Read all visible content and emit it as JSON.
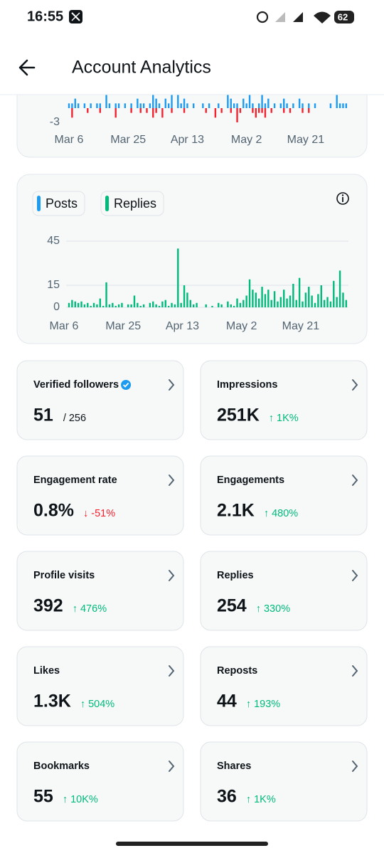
{
  "status_bar": {
    "time": "16:55",
    "battery": "62"
  },
  "header": {
    "title": "Account Analytics"
  },
  "chart_data": [
    {
      "type": "bar",
      "categories": [
        "Mar 6",
        null,
        null,
        null,
        null,
        null,
        null,
        null,
        null,
        null,
        null,
        null,
        null,
        null,
        null,
        null,
        null,
        null,
        null,
        "Mar 25",
        null,
        null,
        null,
        null,
        null,
        null,
        null,
        null,
        null,
        null,
        null,
        null,
        null,
        null,
        null,
        null,
        null,
        null,
        "Apr 13",
        null,
        null,
        null,
        null,
        null,
        null,
        null,
        null,
        null,
        null,
        null,
        null,
        null,
        null,
        null,
        null,
        null,
        null,
        "May 2",
        null,
        null,
        null,
        null,
        null,
        null,
        null,
        null,
        null,
        null,
        null,
        null,
        null,
        null,
        null,
        null,
        null,
        null,
        "May 21",
        null,
        null,
        null,
        null,
        null,
        null,
        null,
        null,
        null,
        null,
        null,
        null,
        null
      ],
      "series": [
        {
          "color": "#1d9bf0",
          "values": [
            1,
            1,
            2,
            1,
            0,
            1,
            0,
            1,
            0,
            1,
            1,
            0,
            3,
            1,
            0,
            1,
            1,
            0,
            1,
            0,
            1,
            0,
            2,
            1,
            1,
            0,
            1,
            3,
            2,
            1,
            0,
            2,
            1,
            3,
            0,
            3,
            1,
            2,
            1,
            0,
            1,
            0,
            0,
            1,
            0,
            1,
            0,
            0,
            1,
            0,
            0,
            3,
            2,
            1,
            1,
            0,
            2,
            1,
            3,
            1,
            0,
            1,
            3,
            1,
            2,
            0,
            1,
            0,
            1,
            2,
            1,
            0,
            1,
            0,
            2,
            1,
            0,
            1,
            0,
            1,
            0,
            0,
            0,
            0,
            1,
            0,
            3,
            1,
            1,
            1
          ]
        },
        {
          "color": "#f4212e",
          "values": [
            0,
            -2,
            0,
            0,
            0,
            0,
            -1,
            0,
            0,
            0,
            -1,
            0,
            0,
            0,
            0,
            -2,
            0,
            0,
            0,
            0,
            -1,
            0,
            0,
            -1,
            0,
            -1,
            0,
            -2,
            -1,
            0,
            -2,
            0,
            0,
            -1,
            0,
            0,
            0,
            -1,
            0,
            0,
            0,
            0,
            0,
            0,
            -1,
            0,
            0,
            -2,
            0,
            -1,
            0,
            0,
            -1,
            0,
            -3,
            -1,
            0,
            0,
            0,
            -1,
            -2,
            -1,
            -1,
            -2,
            0,
            -1,
            0,
            0,
            0,
            -1,
            0,
            -1,
            0,
            0,
            0,
            -1,
            0,
            -1,
            0,
            0,
            0,
            0,
            0,
            0,
            0,
            0,
            0,
            0,
            0,
            0
          ]
        }
      ],
      "ylim": [
        -3,
        3
      ],
      "yticks": [
        -3
      ]
    },
    {
      "type": "bar",
      "categories": [
        "Mar 6",
        null,
        null,
        null,
        null,
        null,
        null,
        null,
        null,
        null,
        null,
        null,
        null,
        null,
        null,
        null,
        null,
        null,
        null,
        "Mar 25",
        null,
        null,
        null,
        null,
        null,
        null,
        null,
        null,
        null,
        null,
        null,
        null,
        null,
        null,
        null,
        null,
        null,
        null,
        "Apr 13",
        null,
        null,
        null,
        null,
        null,
        null,
        null,
        null,
        null,
        null,
        null,
        null,
        null,
        null,
        null,
        null,
        null,
        null,
        "May 2",
        null,
        null,
        null,
        null,
        null,
        null,
        null,
        null,
        null,
        null,
        null,
        null,
        null,
        null,
        null,
        null,
        null,
        null,
        "May 21",
        null,
        null,
        null,
        null,
        null,
        null,
        null,
        null,
        null,
        null,
        null,
        null,
        null
      ],
      "series": [
        {
          "name": "Posts",
          "color": "#1d9bf0",
          "values": [
            0,
            0,
            0,
            0,
            0,
            0,
            0,
            0,
            0,
            0,
            0,
            0,
            0,
            0,
            0,
            0,
            0,
            0,
            0,
            0,
            0,
            0,
            0,
            0,
            0,
            0,
            0,
            0,
            0,
            0,
            0,
            0,
            0,
            0,
            0,
            0,
            0,
            0,
            0,
            0,
            0,
            0,
            0,
            0,
            0,
            0,
            0,
            0,
            0,
            0,
            0,
            0,
            0,
            0,
            0,
            0,
            0,
            0,
            0,
            0,
            0,
            0,
            0,
            0,
            0,
            0,
            0,
            0,
            0,
            0,
            0,
            0,
            0,
            0,
            0,
            0,
            0,
            0,
            0,
            0,
            0,
            0,
            0,
            0,
            0,
            0,
            0,
            0,
            0,
            0
          ]
        },
        {
          "name": "Replies",
          "color": "#00ba7c",
          "values": [
            3,
            5,
            4,
            3,
            4,
            2,
            3,
            1,
            3,
            2,
            6,
            1,
            17,
            2,
            3,
            1,
            2,
            3,
            0,
            2,
            2,
            8,
            3,
            1,
            2,
            0,
            3,
            4,
            2,
            1,
            4,
            5,
            1,
            3,
            2,
            40,
            3,
            15,
            10,
            5,
            2,
            3,
            0,
            0,
            2,
            0,
            1,
            0,
            3,
            2,
            0,
            4,
            2,
            1,
            6,
            3,
            5,
            8,
            19,
            12,
            10,
            6,
            14,
            9,
            12,
            5,
            11,
            4,
            7,
            12,
            6,
            8,
            16,
            5,
            20,
            4,
            10,
            14,
            8,
            3,
            9,
            15,
            5,
            7,
            4,
            18,
            7,
            25,
            10,
            5
          ]
        }
      ],
      "ylim": [
        0,
        45
      ],
      "yticks": [
        0,
        15,
        45
      ],
      "grid": true
    }
  ],
  "stats": [
    {
      "label": "Verified followers",
      "value": "51",
      "total": "/ 256"
    },
    {
      "label": "Impressions",
      "value": "251K",
      "change": "↑ 1K%",
      "change_color": "#00ba7c"
    },
    {
      "label": "Engagement rate",
      "value": "0.8%",
      "change": "↓ -51%",
      "change_color": "#f4212e"
    },
    {
      "label": "Engagements",
      "value": "2.1K",
      "change": "↑ 480%",
      "change_color": "#00ba7c"
    },
    {
      "label": "Profile visits",
      "value": "392",
      "change": "↑ 476%",
      "change_color": "#00ba7c"
    },
    {
      "label": "Replies",
      "value": "254",
      "change": "↑ 330%",
      "change_color": "#00ba7c"
    },
    {
      "label": "Likes",
      "value": "1.3K",
      "change": "↑ 504%",
      "change_color": "#00ba7c"
    },
    {
      "label": "Reposts",
      "value": "44",
      "change": "↑ 193%",
      "change_color": "#00ba7c"
    },
    {
      "label": "Bookmarks",
      "value": "55",
      "change": "↑ 10K%",
      "change_color": "#00ba7c"
    },
    {
      "label": "Shares",
      "value": "36",
      "change": "↑ 1K%",
      "change_color": "#00ba7c"
    }
  ]
}
